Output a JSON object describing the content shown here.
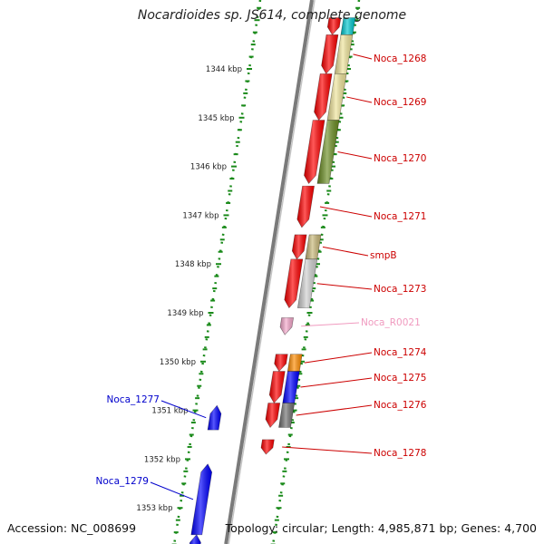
{
  "title": "Nocardioides sp. JS614, complete genome",
  "footer": {
    "accession": "Accession: NC_008699",
    "summary": "Topology: circular; Length: 4,985,871 bp; Genes: 4,700"
  },
  "colors": {
    "backbone": "#7a7a7a",
    "tick": "#1a8a1a",
    "forward_gene": "#ff0000",
    "reverse_gene": "#0000ff",
    "label_red": "#cc0000",
    "label_blue": "#0000cc",
    "label_rna": "#f09abf"
  },
  "scale": {
    "unit": "kbp",
    "ticks": [
      {
        "value": 1344,
        "label": "1344 kbp"
      },
      {
        "value": 1345,
        "label": "1345 kbp"
      },
      {
        "value": 1346,
        "label": "1346 kbp"
      },
      {
        "value": 1347,
        "label": "1347 kbp"
      },
      {
        "value": 1348,
        "label": "1348 kbp"
      },
      {
        "value": 1349,
        "label": "1349 kbp"
      },
      {
        "value": 1350,
        "label": "1350 kbp"
      },
      {
        "value": 1351,
        "label": "1351 kbp"
      },
      {
        "value": 1352,
        "label": "1352 kbp"
      },
      {
        "value": 1353,
        "label": "1353 kbp"
      }
    ]
  },
  "features": [
    {
      "label": "",
      "strand": "forward",
      "start": 1342.95,
      "end": 1343.3,
      "color": "#ff0000",
      "cog_color": "#00c8d0"
    },
    {
      "label": "Noca_1268",
      "strand": "forward",
      "start": 1343.3,
      "end": 1344.1,
      "color": "#ff0000",
      "cog_color": "#efe49a",
      "label_color": "#cc0000"
    },
    {
      "label": "Noca_1269",
      "strand": "forward",
      "start": 1344.1,
      "end": 1345.05,
      "color": "#ff0000",
      "cog_color": "#efe49a",
      "label_color": "#cc0000"
    },
    {
      "label": "Noca_1270",
      "strand": "forward",
      "start": 1345.05,
      "end": 1346.35,
      "color": "#ff0000",
      "cog_color": "#6b8e23",
      "label_color": "#cc0000"
    },
    {
      "label": "Noca_1271",
      "strand": "forward",
      "start": 1346.4,
      "end": 1347.25,
      "color": "#ff0000",
      "cog_color": "",
      "label_color": "#cc0000"
    },
    {
      "label": "smpB",
      "strand": "forward",
      "start": 1347.4,
      "end": 1347.9,
      "color": "#ff0000",
      "cog_color": "#c8b878",
      "label_color": "#cc0000"
    },
    {
      "label": "Noca_1273",
      "strand": "forward",
      "start": 1347.9,
      "end": 1348.9,
      "color": "#ff0000",
      "cog_color": "#cfcfcf",
      "label_color": "#cc0000"
    },
    {
      "label": "Noca_R0021",
      "strand": "forward",
      "start": 1349.1,
      "end": 1349.45,
      "color": "#f6a8cc",
      "cog_color": "",
      "label_color": "#f09abf"
    },
    {
      "label": "Noca_1274",
      "strand": "forward",
      "start": 1349.85,
      "end": 1350.2,
      "color": "#ff0000",
      "cog_color": "#ff8c00",
      "label_color": "#cc0000"
    },
    {
      "label": "Noca_1275",
      "strand": "forward",
      "start": 1350.2,
      "end": 1350.85,
      "color": "#ff0000",
      "cog_color": "#0000ff",
      "label_color": "#cc0000"
    },
    {
      "label": "Noca_1276",
      "strand": "forward",
      "start": 1350.85,
      "end": 1351.35,
      "color": "#ff0000",
      "cog_color": "#707070",
      "label_color": "#cc0000"
    },
    {
      "label": "Noca_1277",
      "strand": "reverse",
      "start": 1350.9,
      "end": 1351.4,
      "color": "#0000ff",
      "cog_color": "",
      "label_color": "#0000cc"
    },
    {
      "label": "Noca_1278",
      "strand": "forward",
      "start": 1351.6,
      "end": 1351.9,
      "color": "#ff0000",
      "cog_color": "",
      "label_color": "#cc0000"
    },
    {
      "label": "Noca_1279",
      "strand": "reverse",
      "start": 1352.1,
      "end": 1353.55,
      "color": "#0000ff",
      "cog_color": "",
      "label_color": "#0000cc"
    },
    {
      "label": "",
      "strand": "reverse",
      "start": 1353.55,
      "end": 1353.9,
      "color": "#0000ff",
      "cog_color": "",
      "label_color": "#0000cc"
    }
  ]
}
